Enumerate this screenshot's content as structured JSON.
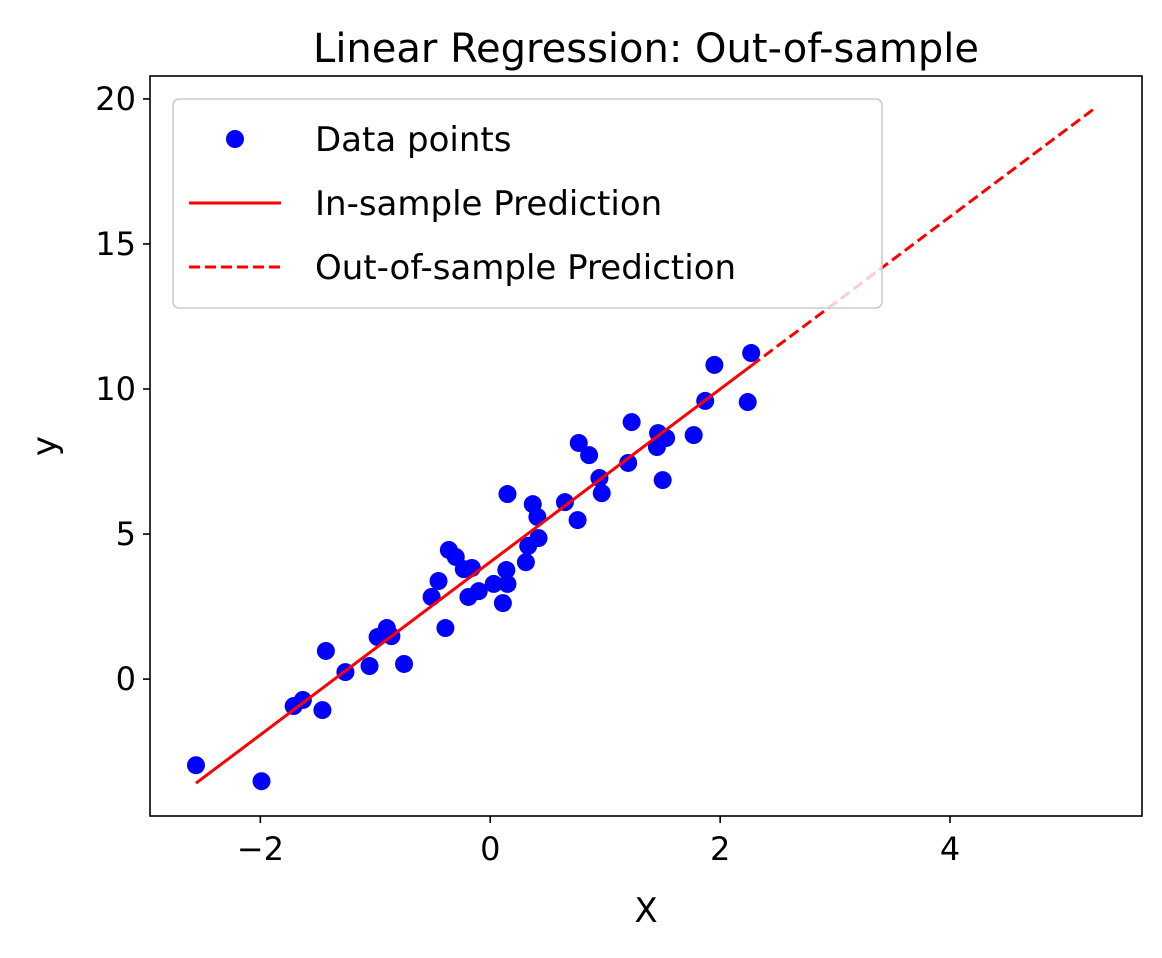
{
  "chart_data": {
    "type": "scatter",
    "title": "Linear Regression: Out-of-sample",
    "xlabel": "X",
    "ylabel": "y",
    "xlim": [
      -2.96,
      5.67
    ],
    "ylim": [
      -4.72,
      20.79
    ],
    "xticks": [
      -2,
      0,
      2,
      4
    ],
    "xtick_labels": [
      "−2",
      "0",
      "2",
      "4"
    ],
    "yticks": [
      0,
      5,
      10,
      15,
      20
    ],
    "ytick_labels": [
      "0",
      "5",
      "10",
      "15",
      "20"
    ],
    "grid": false,
    "legend_position": "top-left",
    "colors": {
      "points": "#0000ff",
      "line": "#ff0000"
    },
    "series": [
      {
        "name": "Data points",
        "kind": "scatter",
        "points": [
          [
            -2.56,
            -2.97
          ],
          [
            -1.99,
            -3.52
          ],
          [
            -1.71,
            -0.93
          ],
          [
            -1.63,
            -0.72
          ],
          [
            -1.46,
            -1.07
          ],
          [
            -1.43,
            0.97
          ],
          [
            -1.26,
            0.24
          ],
          [
            -1.05,
            0.45
          ],
          [
            -0.98,
            1.45
          ],
          [
            -0.9,
            1.76
          ],
          [
            -0.86,
            1.48
          ],
          [
            -0.75,
            0.52
          ],
          [
            -0.51,
            2.83
          ],
          [
            -0.45,
            3.38
          ],
          [
            -0.39,
            1.76
          ],
          [
            -0.36,
            4.45
          ],
          [
            -0.3,
            4.21
          ],
          [
            -0.23,
            3.79
          ],
          [
            -0.19,
            2.83
          ],
          [
            -0.16,
            3.83
          ],
          [
            -0.1,
            3.03
          ],
          [
            0.03,
            3.28
          ],
          [
            0.11,
            2.62
          ],
          [
            0.14,
            3.76
          ],
          [
            0.15,
            3.28
          ],
          [
            0.15,
            6.38
          ],
          [
            0.31,
            4.03
          ],
          [
            0.33,
            4.59
          ],
          [
            0.37,
            6.03
          ],
          [
            0.41,
            5.59
          ],
          [
            0.42,
            4.86
          ],
          [
            0.65,
            6.1
          ],
          [
            0.76,
            5.48
          ],
          [
            0.77,
            8.14
          ],
          [
            0.86,
            7.72
          ],
          [
            0.95,
            6.93
          ],
          [
            0.97,
            6.41
          ],
          [
            1.2,
            7.45
          ],
          [
            1.23,
            8.86
          ],
          [
            1.46,
            8.48
          ],
          [
            1.45,
            8.0
          ],
          [
            1.5,
            6.86
          ],
          [
            1.53,
            8.31
          ],
          [
            1.77,
            8.41
          ],
          [
            1.87,
            9.59
          ],
          [
            1.95,
            10.83
          ],
          [
            2.24,
            9.55
          ],
          [
            2.27,
            11.24
          ]
        ]
      },
      {
        "name": "In-sample Prediction",
        "kind": "line",
        "style": "solid",
        "x": [
          -2.56,
          2.27
        ],
        "y": [
          -3.59,
          10.8
        ]
      },
      {
        "name": "Out-of-sample Prediction",
        "kind": "line",
        "style": "dashed",
        "x": [
          2.27,
          5.25
        ],
        "y": [
          10.8,
          19.65
        ]
      }
    ]
  }
}
